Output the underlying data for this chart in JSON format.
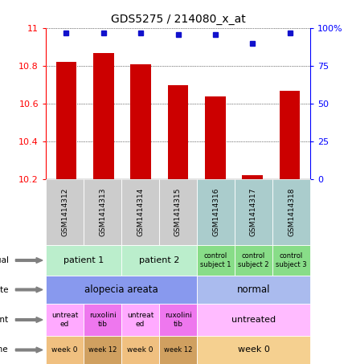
{
  "title": "GDS5275 / 214080_x_at",
  "samples": [
    "GSM1414312",
    "GSM1414313",
    "GSM1414314",
    "GSM1414315",
    "GSM1414316",
    "GSM1414317",
    "GSM1414318"
  ],
  "transformed_count": [
    10.82,
    10.87,
    10.81,
    10.7,
    10.64,
    10.22,
    10.67
  ],
  "percentile_rank": [
    97,
    97,
    97,
    96,
    96,
    90,
    97
  ],
  "y_min": 10.2,
  "y_max": 11.0,
  "y_ticks": [
    10.2,
    10.4,
    10.6,
    10.8,
    11
  ],
  "right_y_ticks": [
    0,
    25,
    50,
    75,
    100
  ],
  "right_y_labels": [
    "0",
    "25",
    "50",
    "75",
    "100%"
  ],
  "bar_color": "#cc0000",
  "dot_color": "#1111cc",
  "grid_color": "#555555",
  "sample_header_bg": "#cccccc",
  "sample_header_bg_ctrl": "#aacccc",
  "indiv_color_patient": "#bbeecc",
  "indiv_color_control": "#88dd88",
  "disease_alopecia_color": "#8899ee",
  "disease_normal_color": "#aabbee",
  "agent_untreated_color": "#ffaaff",
  "agent_ruxolini_color": "#ee77ee",
  "agent_ctrl_color": "#ffbbff",
  "time_week0_color": "#f0c080",
  "time_week12_color": "#d0a060",
  "time_week0c_color": "#f5d090"
}
